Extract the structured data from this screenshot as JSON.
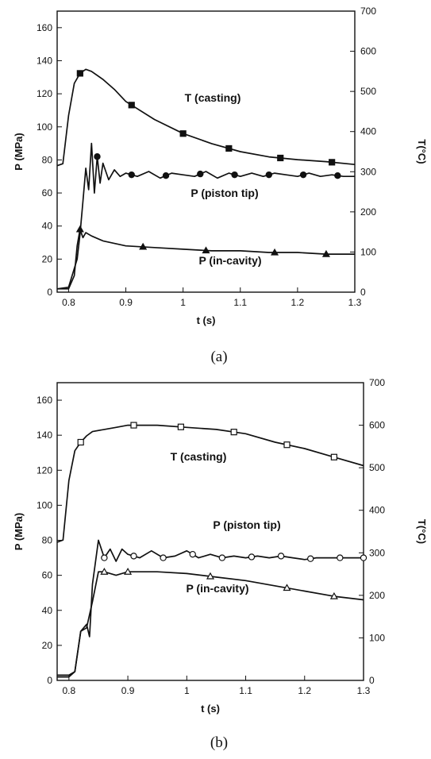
{
  "chart_data": [
    {
      "type": "line",
      "caption": "(a)",
      "xlabel": "t (s)",
      "ylabel": "P (MPa)",
      "y2label": "T(°C)",
      "xlim": [
        0.78,
        1.3
      ],
      "ylim": [
        0,
        170
      ],
      "y2lim": [
        0,
        700
      ],
      "x_ticks": [
        "0.8",
        "0.9",
        "1",
        "1.1",
        "1.2",
        "1.3"
      ],
      "y_ticks": [
        "0",
        "20",
        "40",
        "60",
        "80",
        "100",
        "120",
        "140",
        "160"
      ],
      "y2_ticks": [
        "0",
        "100",
        "200",
        "300",
        "400",
        "500",
        "600",
        "700"
      ],
      "series": [
        {
          "name": "T (casting)",
          "axis": "right",
          "marker": "filled-square",
          "x": [
            0.78,
            0.79,
            0.8,
            0.81,
            0.82,
            0.83,
            0.84,
            0.86,
            0.88,
            0.9,
            0.95,
            1.0,
            1.05,
            1.1,
            1.15,
            1.2,
            1.25,
            1.3
          ],
          "y": [
            315,
            320,
            440,
            520,
            545,
            555,
            550,
            530,
            505,
            475,
            430,
            395,
            370,
            350,
            337,
            330,
            325,
            318
          ],
          "markers_x": [
            0.82,
            0.91,
            1.0,
            1.08,
            1.17,
            1.26
          ]
        },
        {
          "name": "P (piston tip)",
          "axis": "left",
          "marker": "filled-circle",
          "x": [
            0.78,
            0.8,
            0.815,
            0.82,
            0.825,
            0.83,
            0.835,
            0.84,
            0.845,
            0.85,
            0.855,
            0.86,
            0.87,
            0.88,
            0.89,
            0.9,
            0.92,
            0.94,
            0.96,
            0.98,
            1.0,
            1.02,
            1.04,
            1.06,
            1.08,
            1.1,
            1.12,
            1.14,
            1.16,
            1.18,
            1.2,
            1.22,
            1.24,
            1.26,
            1.28,
            1.3
          ],
          "y": [
            2,
            3,
            20,
            35,
            55,
            75,
            62,
            90,
            60,
            82,
            66,
            78,
            68,
            74,
            70,
            72,
            70,
            73,
            69,
            72,
            71,
            70,
            73,
            69,
            72,
            70,
            72,
            70,
            72,
            71,
            70,
            72,
            70,
            71,
            70,
            70
          ],
          "markers_x": [
            0.85,
            0.91,
            0.97,
            1.03,
            1.09,
            1.15,
            1.21,
            1.27
          ]
        },
        {
          "name": "P (in-cavity)",
          "axis": "left",
          "marker": "filled-triangle",
          "x": [
            0.78,
            0.8,
            0.81,
            0.815,
            0.82,
            0.825,
            0.83,
            0.84,
            0.86,
            0.9,
            0.95,
            1.0,
            1.05,
            1.1,
            1.15,
            1.2,
            1.25,
            1.3
          ],
          "y": [
            2,
            2,
            10,
            28,
            38,
            33,
            36,
            34,
            31,
            28,
            27,
            26,
            25,
            25,
            24,
            24,
            23,
            23
          ],
          "markers_x": [
            0.82,
            0.93,
            1.04,
            1.16,
            1.25
          ]
        }
      ]
    },
    {
      "type": "line",
      "caption": "(b)",
      "xlabel": "t (s)",
      "ylabel": "P (MPa)",
      "y2label": "T(°C)",
      "xlim": [
        0.78,
        1.3
      ],
      "ylim": [
        0,
        170
      ],
      "y2lim": [
        0,
        700
      ],
      "x_ticks": [
        "0.8",
        "0.9",
        "1",
        "1.1",
        "1.2",
        "1.3"
      ],
      "y_ticks": [
        "0",
        "20",
        "40",
        "60",
        "80",
        "100",
        "120",
        "140",
        "160"
      ],
      "y2_ticks": [
        "0",
        "100",
        "200",
        "300",
        "400",
        "500",
        "600",
        "700"
      ],
      "series": [
        {
          "name": "T (casting)",
          "axis": "right",
          "marker": "open-square",
          "x": [
            0.78,
            0.79,
            0.8,
            0.81,
            0.82,
            0.83,
            0.84,
            0.86,
            0.88,
            0.9,
            0.95,
            1.0,
            1.05,
            1.1,
            1.15,
            1.2,
            1.25,
            1.3
          ],
          "y": [
            325,
            330,
            470,
            540,
            560,
            575,
            585,
            590,
            595,
            600,
            600,
            595,
            590,
            580,
            560,
            545,
            525,
            505
          ],
          "markers_x": [
            0.82,
            0.91,
            0.99,
            1.08,
            1.17,
            1.25
          ]
        },
        {
          "name": "P (piston tip)",
          "axis": "left",
          "marker": "open-circle",
          "x": [
            0.78,
            0.8,
            0.81,
            0.82,
            0.83,
            0.835,
            0.84,
            0.85,
            0.86,
            0.87,
            0.88,
            0.89,
            0.9,
            0.92,
            0.94,
            0.96,
            0.98,
            1.0,
            1.02,
            1.04,
            1.06,
            1.08,
            1.1,
            1.12,
            1.14,
            1.16,
            1.18,
            1.2,
            1.22,
            1.24,
            1.26,
            1.28,
            1.3
          ],
          "y": [
            3,
            3,
            5,
            28,
            32,
            25,
            55,
            80,
            70,
            75,
            68,
            75,
            72,
            70,
            74,
            70,
            71,
            74,
            70,
            72,
            70,
            71,
            70,
            71,
            70,
            71,
            70,
            69,
            70,
            70,
            70,
            70,
            70
          ],
          "markers_x": [
            0.86,
            0.91,
            0.96,
            1.01,
            1.06,
            1.11,
            1.16,
            1.21,
            1.26,
            1.3
          ]
        },
        {
          "name": "P (in-cavity)",
          "axis": "left",
          "marker": "open-triangle",
          "x": [
            0.78,
            0.8,
            0.81,
            0.82,
            0.83,
            0.84,
            0.85,
            0.86,
            0.88,
            0.9,
            0.95,
            1.0,
            1.05,
            1.1,
            1.15,
            1.2,
            1.25,
            1.3
          ],
          "y": [
            2,
            2,
            5,
            28,
            30,
            45,
            62,
            62,
            60,
            62,
            62,
            61,
            59,
            57,
            54,
            51,
            48,
            46
          ],
          "markers_x": [
            0.86,
            0.9,
            1.04,
            1.17,
            1.25
          ]
        }
      ]
    }
  ]
}
